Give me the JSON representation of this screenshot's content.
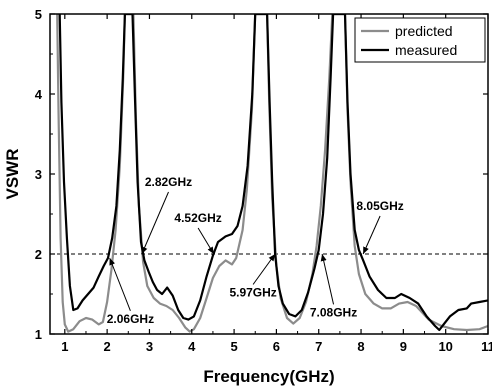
{
  "chart_data": {
    "type": "line",
    "xlabel": "Frequency(GHz)",
    "ylabel": "VSWR",
    "xlim": [
      0.65,
      11
    ],
    "ylim": [
      1,
      5
    ],
    "x_ticks": [
      1,
      2,
      3,
      4,
      5,
      6,
      7,
      8,
      9,
      10,
      11
    ],
    "y_ticks": [
      1,
      2,
      3,
      4,
      5
    ],
    "legend_position": "top-right",
    "reference_line": {
      "y": 2,
      "style": "dashed"
    },
    "series": [
      {
        "name": "predicted",
        "color": "#8c8c8c",
        "points": [
          [
            0.82,
            5
          ],
          [
            0.85,
            3.8
          ],
          [
            0.9,
            2.2
          ],
          [
            0.95,
            1.4
          ],
          [
            1.0,
            1.12
          ],
          [
            1.08,
            1.03
          ],
          [
            1.2,
            1.06
          ],
          [
            1.35,
            1.16
          ],
          [
            1.5,
            1.2
          ],
          [
            1.65,
            1.18
          ],
          [
            1.8,
            1.12
          ],
          [
            1.9,
            1.15
          ],
          [
            2.0,
            1.4
          ],
          [
            2.1,
            1.8
          ],
          [
            2.2,
            2.3
          ],
          [
            2.3,
            3.1
          ],
          [
            2.38,
            4.2
          ],
          [
            2.42,
            5
          ],
          [
            2.62,
            5
          ],
          [
            2.68,
            3.7
          ],
          [
            2.75,
            2.6
          ],
          [
            2.85,
            1.9
          ],
          [
            2.95,
            1.6
          ],
          [
            3.1,
            1.45
          ],
          [
            3.25,
            1.38
          ],
          [
            3.4,
            1.35
          ],
          [
            3.55,
            1.3
          ],
          [
            3.7,
            1.2
          ],
          [
            3.85,
            1.08
          ],
          [
            3.95,
            1.03
          ],
          [
            4.05,
            1.06
          ],
          [
            4.2,
            1.2
          ],
          [
            4.35,
            1.45
          ],
          [
            4.5,
            1.7
          ],
          [
            4.65,
            1.85
          ],
          [
            4.8,
            1.92
          ],
          [
            4.95,
            1.87
          ],
          [
            5.05,
            1.95
          ],
          [
            5.2,
            2.3
          ],
          [
            5.3,
            2.8
          ],
          [
            5.42,
            3.8
          ],
          [
            5.5,
            5
          ],
          [
            5.78,
            5
          ],
          [
            5.83,
            3.9
          ],
          [
            5.9,
            2.7
          ],
          [
            6.0,
            1.85
          ],
          [
            6.1,
            1.45
          ],
          [
            6.25,
            1.2
          ],
          [
            6.4,
            1.13
          ],
          [
            6.55,
            1.2
          ],
          [
            6.7,
            1.4
          ],
          [
            6.85,
            1.75
          ],
          [
            6.95,
            2.1
          ],
          [
            7.05,
            2.6
          ],
          [
            7.15,
            3.3
          ],
          [
            7.25,
            4.2
          ],
          [
            7.32,
            5
          ],
          [
            7.62,
            5
          ],
          [
            7.68,
            3.8
          ],
          [
            7.75,
            2.9
          ],
          [
            7.85,
            2.1
          ],
          [
            7.95,
            1.75
          ],
          [
            8.1,
            1.5
          ],
          [
            8.3,
            1.38
          ],
          [
            8.5,
            1.32
          ],
          [
            8.7,
            1.32
          ],
          [
            8.9,
            1.38
          ],
          [
            9.1,
            1.4
          ],
          [
            9.3,
            1.35
          ],
          [
            9.6,
            1.18
          ],
          [
            9.9,
            1.1
          ],
          [
            10.2,
            1.06
          ],
          [
            10.5,
            1.05
          ],
          [
            10.8,
            1.06
          ],
          [
            11.0,
            1.1
          ]
        ]
      },
      {
        "name": "measured",
        "color": "#000000",
        "points": [
          [
            0.88,
            5
          ],
          [
            0.92,
            3.9
          ],
          [
            0.98,
            2.9
          ],
          [
            1.05,
            2.2
          ],
          [
            1.12,
            1.6
          ],
          [
            1.2,
            1.3
          ],
          [
            1.3,
            1.32
          ],
          [
            1.42,
            1.42
          ],
          [
            1.55,
            1.5
          ],
          [
            1.68,
            1.58
          ],
          [
            1.8,
            1.72
          ],
          [
            1.92,
            1.85
          ],
          [
            2.02,
            1.95
          ],
          [
            2.12,
            2.2
          ],
          [
            2.22,
            2.6
          ],
          [
            2.3,
            3.3
          ],
          [
            2.37,
            4.2
          ],
          [
            2.42,
            5
          ],
          [
            2.6,
            5
          ],
          [
            2.66,
            3.9
          ],
          [
            2.72,
            2.9
          ],
          [
            2.8,
            2.15
          ],
          [
            2.88,
            1.92
          ],
          [
            2.98,
            1.78
          ],
          [
            3.08,
            1.65
          ],
          [
            3.18,
            1.55
          ],
          [
            3.3,
            1.5
          ],
          [
            3.42,
            1.58
          ],
          [
            3.55,
            1.48
          ],
          [
            3.68,
            1.3
          ],
          [
            3.8,
            1.2
          ],
          [
            3.92,
            1.18
          ],
          [
            4.05,
            1.22
          ],
          [
            4.2,
            1.42
          ],
          [
            4.35,
            1.72
          ],
          [
            4.5,
            1.98
          ],
          [
            4.62,
            2.15
          ],
          [
            4.8,
            2.22
          ],
          [
            4.95,
            2.25
          ],
          [
            5.08,
            2.35
          ],
          [
            5.2,
            2.6
          ],
          [
            5.32,
            3.1
          ],
          [
            5.43,
            4.0
          ],
          [
            5.5,
            5
          ],
          [
            5.78,
            5
          ],
          [
            5.84,
            3.9
          ],
          [
            5.9,
            2.9
          ],
          [
            5.97,
            2.0
          ],
          [
            6.05,
            1.6
          ],
          [
            6.15,
            1.38
          ],
          [
            6.3,
            1.25
          ],
          [
            6.45,
            1.22
          ],
          [
            6.6,
            1.3
          ],
          [
            6.75,
            1.52
          ],
          [
            6.9,
            1.82
          ],
          [
            7.0,
            2.05
          ],
          [
            7.1,
            2.5
          ],
          [
            7.2,
            3.2
          ],
          [
            7.28,
            4.2
          ],
          [
            7.34,
            5
          ],
          [
            7.62,
            5
          ],
          [
            7.68,
            3.9
          ],
          [
            7.75,
            3.0
          ],
          [
            7.85,
            2.3
          ],
          [
            7.95,
            2.05
          ],
          [
            8.05,
            1.92
          ],
          [
            8.2,
            1.72
          ],
          [
            8.4,
            1.55
          ],
          [
            8.6,
            1.45
          ],
          [
            8.8,
            1.45
          ],
          [
            8.95,
            1.5
          ],
          [
            9.15,
            1.45
          ],
          [
            9.35,
            1.38
          ],
          [
            9.55,
            1.22
          ],
          [
            9.75,
            1.1
          ],
          [
            9.85,
            1.05
          ],
          [
            9.95,
            1.12
          ],
          [
            10.1,
            1.22
          ],
          [
            10.3,
            1.3
          ],
          [
            10.5,
            1.32
          ],
          [
            10.6,
            1.38
          ],
          [
            10.8,
            1.4
          ],
          [
            11.0,
            1.42
          ]
        ]
      }
    ],
    "annotations": [
      {
        "text": "2.06GHz",
        "x": 2.06,
        "y": 1.95,
        "label_x": 2.55,
        "label_y": 1.14
      },
      {
        "text": "2.82GHz",
        "x": 2.82,
        "y": 2.0,
        "label_x": 3.45,
        "label_y": 2.85
      },
      {
        "text": "4.52GHz",
        "x": 4.52,
        "y": 2.0,
        "label_x": 4.15,
        "label_y": 2.4
      },
      {
        "text": "5.97GHz",
        "x": 5.97,
        "y": 2.0,
        "label_x": 5.45,
        "label_y": 1.47
      },
      {
        "text": "7.08GHz",
        "x": 7.08,
        "y": 2.0,
        "label_x": 7.35,
        "label_y": 1.22
      },
      {
        "text": "8.05GHz",
        "x": 8.05,
        "y": 2.0,
        "label_x": 8.45,
        "label_y": 2.55
      }
    ]
  }
}
